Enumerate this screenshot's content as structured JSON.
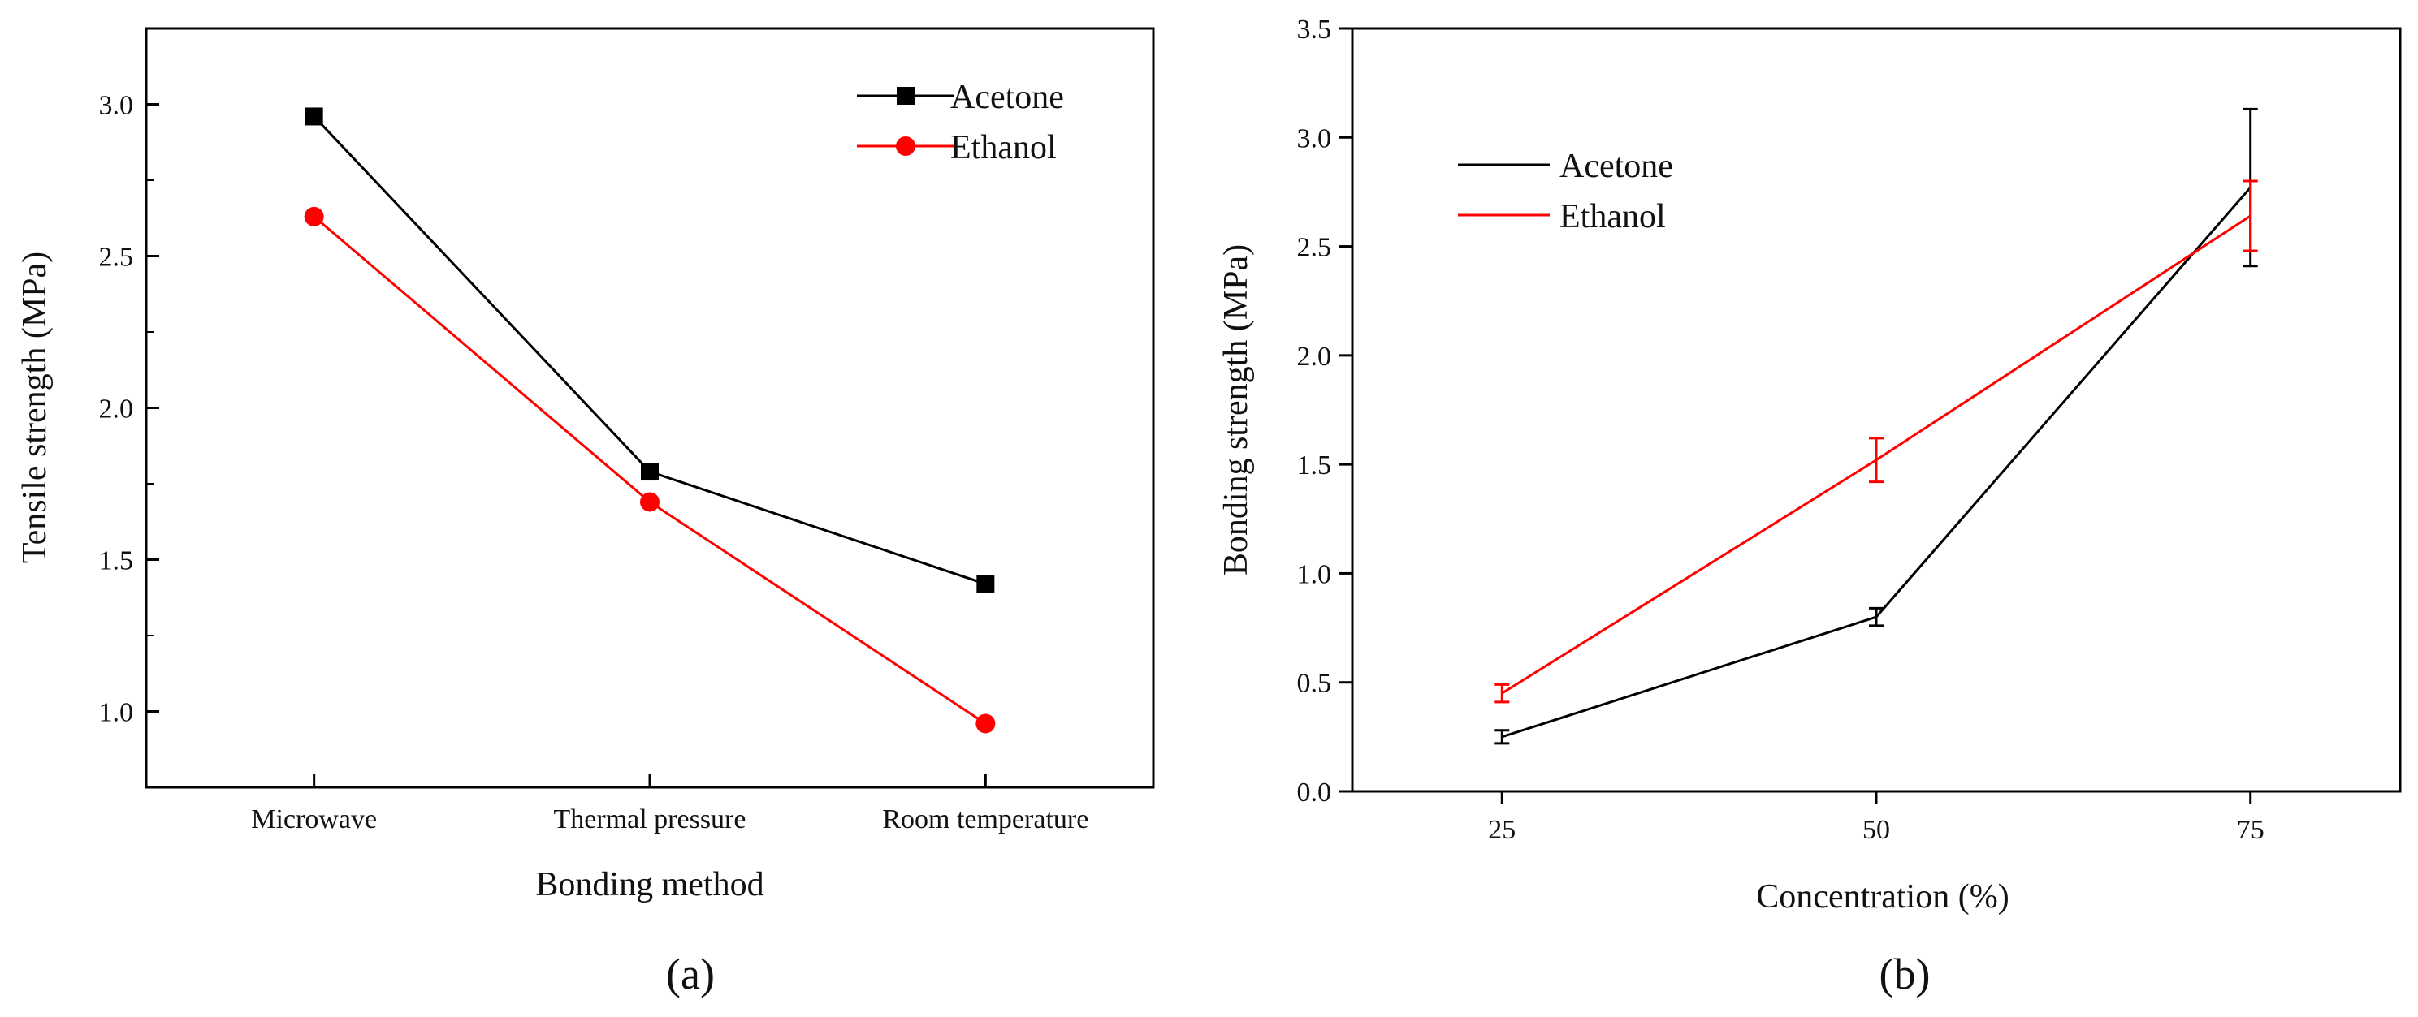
{
  "chart_data": [
    {
      "id": "a",
      "type": "line",
      "panel_label": "(a)",
      "xlabel": "Bonding method",
      "ylabel": "Tensile strength (MPa)",
      "categories": [
        "Microwave",
        "Thermal pressure",
        "Room temperature"
      ],
      "ylim": [
        0.75,
        3.25
      ],
      "yticks": [
        1.0,
        1.5,
        2.0,
        2.5,
        3.0
      ],
      "ytick_labels": [
        "1.0",
        "1.5",
        "2.0",
        "2.5",
        "3.0"
      ],
      "grid": false,
      "legend_position": "top-right",
      "series": [
        {
          "name": "Acetone",
          "color": "#000000",
          "marker": "square",
          "values": [
            2.96,
            1.79,
            1.42
          ]
        },
        {
          "name": "Ethanol",
          "color": "#ff0000",
          "marker": "circle",
          "values": [
            2.63,
            1.69,
            0.96
          ]
        }
      ]
    },
    {
      "id": "b",
      "type": "line",
      "panel_label": "(b)",
      "xlabel": "Concentration (%)",
      "ylabel": "Bonding strength (MPa)",
      "x": [
        25,
        50,
        75
      ],
      "xlim": [
        15,
        85
      ],
      "xtick_labels": [
        "25",
        "50",
        "75"
      ],
      "ylim": [
        0.0,
        3.5
      ],
      "yticks": [
        0.0,
        0.5,
        1.0,
        1.5,
        2.0,
        2.5,
        3.0,
        3.5
      ],
      "ytick_labels": [
        "0.0",
        "0.5",
        "1.0",
        "1.5",
        "2.0",
        "2.5",
        "3.0",
        "3.5"
      ],
      "grid": false,
      "legend_position": "top-left",
      "series": [
        {
          "name": "Acetone",
          "color": "#000000",
          "values": [
            0.25,
            0.8,
            2.77
          ],
          "errors": [
            0.03,
            0.04,
            0.36
          ]
        },
        {
          "name": "Ethanol",
          "color": "#ff0000",
          "values": [
            0.45,
            1.52,
            2.64
          ],
          "errors": [
            0.04,
            0.1,
            0.16
          ]
        }
      ]
    }
  ]
}
